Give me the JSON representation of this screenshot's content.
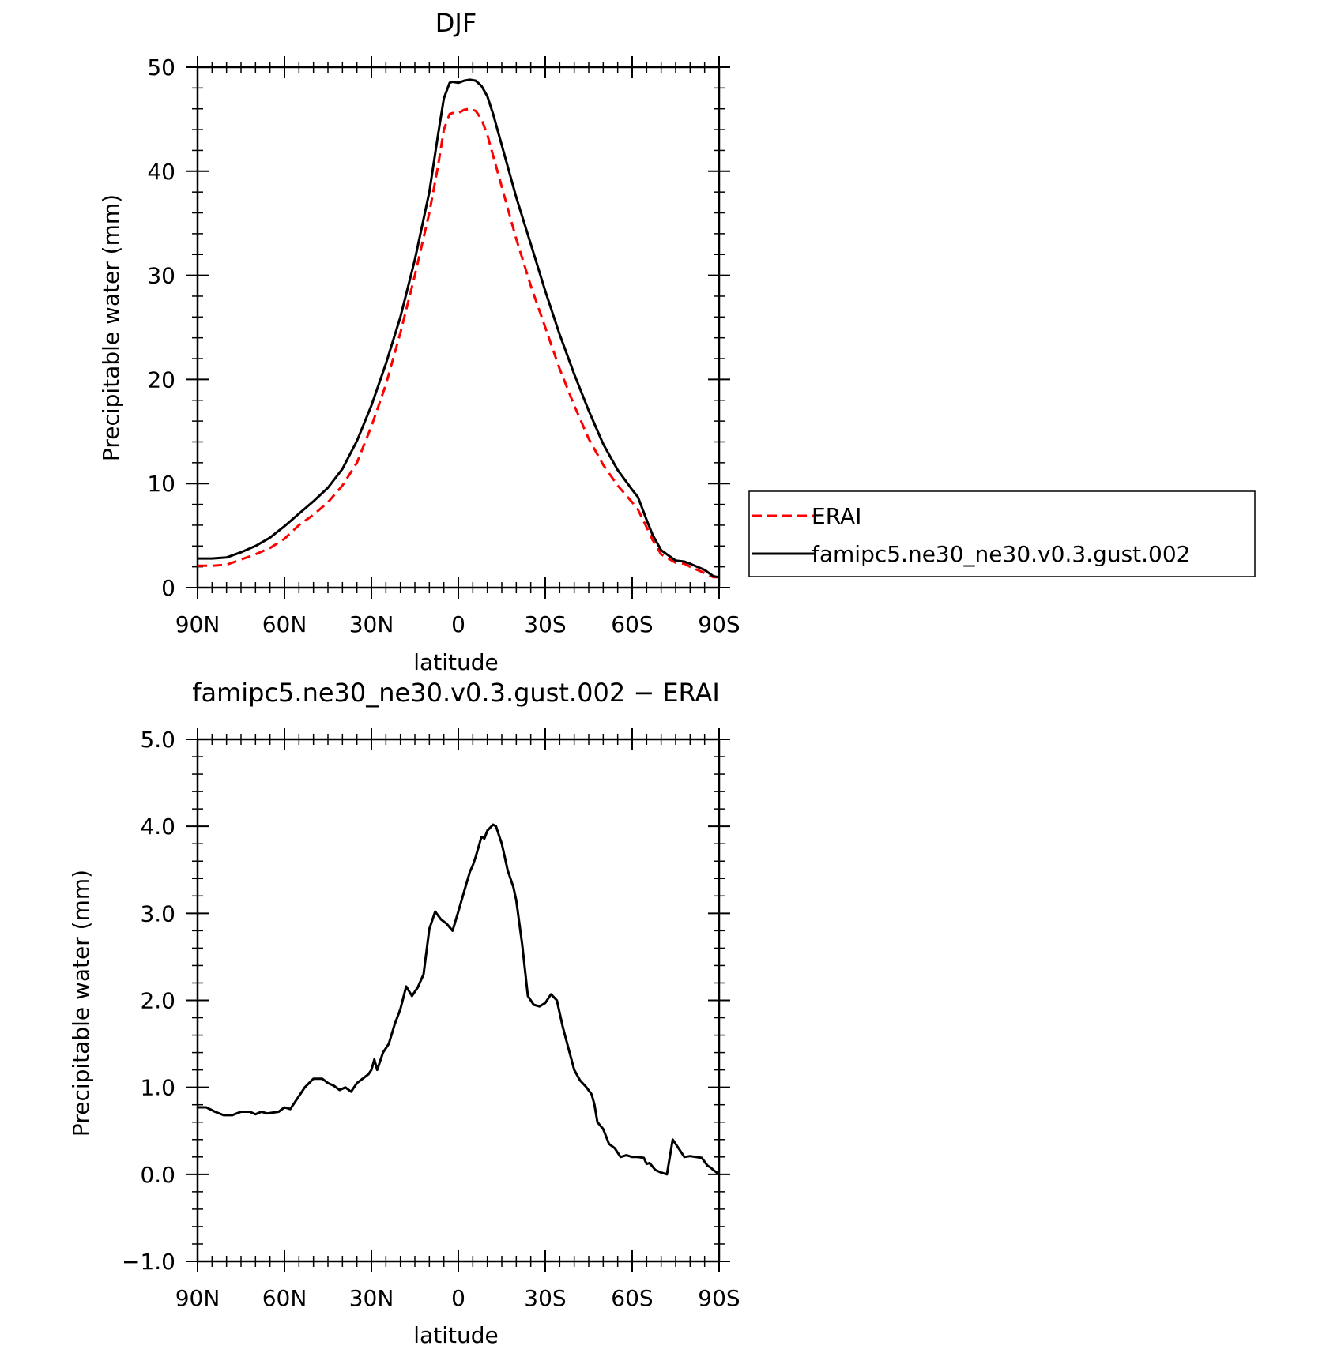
{
  "legend_colors": {
    "erai": "#ff0000",
    "model": "#000000"
  },
  "chart_data": [
    {
      "type": "line",
      "title": "DJF",
      "xlabel": "latitude",
      "ylabel": "Precipitable water (mm)",
      "xlim": [
        90,
        -90
      ],
      "ylim": [
        0,
        50
      ],
      "yticks": [
        "0",
        "10",
        "20",
        "30",
        "40",
        "50"
      ],
      "xticks": [
        "90N",
        "60N",
        "30N",
        "0",
        "30S",
        "60S",
        "90S"
      ],
      "legend_position": "right",
      "series": [
        {
          "name": "ERAI",
          "style": "dashed",
          "color": "#ff0000",
          "x": [
            90,
            85,
            80,
            75,
            70,
            65,
            60,
            55,
            50,
            45,
            40,
            35,
            30,
            25,
            20,
            15,
            10,
            7,
            5,
            3,
            2,
            0,
            -2,
            -4,
            -6,
            -8,
            -10,
            -12,
            -15,
            -20,
            -25,
            -30,
            -35,
            -40,
            -45,
            -50,
            -55,
            -60,
            -62,
            -65,
            -67,
            -70,
            -75,
            -78,
            -80,
            -85,
            -88,
            -90
          ],
          "y": [
            2.1,
            2.1,
            2.2,
            2.7,
            3.2,
            3.8,
            4.7,
            6.0,
            7.0,
            8.2,
            9.8,
            12.0,
            15.5,
            19.5,
            24.5,
            30.0,
            36.0,
            40.5,
            44.0,
            45.5,
            45.6,
            45.6,
            45.9,
            46.0,
            45.8,
            45.0,
            43.5,
            41.5,
            38.5,
            33.5,
            29.0,
            25.0,
            21.0,
            17.5,
            14.3,
            11.8,
            9.8,
            8.2,
            7.5,
            5.8,
            4.6,
            3.2,
            2.4,
            2.3,
            2.0,
            1.4,
            1.0,
            1.0
          ]
        },
        {
          "name": "famipc5.ne30_ne30.v0.3.gust.002",
          "style": "solid",
          "color": "#000000",
          "x": [
            90,
            85,
            80,
            75,
            70,
            65,
            60,
            55,
            50,
            45,
            40,
            35,
            30,
            25,
            20,
            15,
            10,
            7,
            5,
            3,
            2,
            0,
            -2,
            -4,
            -6,
            -8,
            -10,
            -12,
            -15,
            -20,
            -25,
            -30,
            -35,
            -40,
            -45,
            -50,
            -55,
            -60,
            -62,
            -65,
            -67,
            -70,
            -75,
            -78,
            -80,
            -85,
            -88,
            -90
          ],
          "y": [
            2.8,
            2.8,
            2.9,
            3.4,
            4.0,
            4.8,
            5.9,
            7.1,
            8.3,
            9.6,
            11.4,
            14.1,
            17.5,
            21.5,
            26.0,
            31.5,
            38.0,
            43.5,
            47.0,
            48.5,
            48.6,
            48.5,
            48.7,
            48.8,
            48.7,
            48.2,
            47.2,
            45.5,
            42.5,
            37.5,
            33.0,
            28.5,
            24.3,
            20.5,
            17.0,
            13.8,
            11.3,
            9.4,
            8.7,
            6.5,
            5.1,
            3.6,
            2.6,
            2.5,
            2.3,
            1.7,
            1.1,
            1.0
          ]
        }
      ]
    },
    {
      "type": "line",
      "title": "famipc5.ne30_ne30.v0.3.gust.002 − ERAI",
      "xlabel": "latitude",
      "ylabel": "Precipitable water (mm)",
      "xlim": [
        90,
        -90
      ],
      "ylim": [
        -1,
        5
      ],
      "yticks": [
        "−1.0",
        "0.0",
        "1.0",
        "2.0",
        "3.0",
        "4.0",
        "5.0"
      ],
      "xticks": [
        "90N",
        "60N",
        "30N",
        "0",
        "30S",
        "60S",
        "90S"
      ],
      "series": [
        {
          "name": "",
          "style": "solid",
          "color": "#000000",
          "x": [
            90,
            87,
            84,
            81,
            78,
            75,
            72,
            70,
            68,
            66,
            64,
            62,
            60,
            58,
            56,
            53,
            50,
            47,
            45,
            43,
            41,
            39,
            37,
            35,
            33,
            31,
            30,
            29,
            28,
            27,
            26,
            24,
            22,
            20,
            18,
            16,
            14,
            12,
            10,
            8,
            6,
            4,
            2,
            0,
            -2,
            -4,
            -5,
            -6,
            -8,
            -9,
            -10,
            -12,
            -13,
            -14,
            -15,
            -16,
            -17,
            -18,
            -19,
            -20,
            -22,
            -24,
            -26,
            -28,
            -30,
            -32,
            -34,
            -36,
            -38,
            -40,
            -42,
            -44,
            -46,
            -47,
            -48,
            -50,
            -52,
            -54,
            -56,
            -58,
            -60,
            -62,
            -64,
            -65,
            -66,
            -68,
            -70,
            -72,
            -74,
            -76,
            -78,
            -80,
            -82,
            -84,
            -86,
            -87,
            -88,
            -90
          ],
          "y": [
            0.77,
            0.77,
            0.72,
            0.68,
            0.68,
            0.72,
            0.72,
            0.69,
            0.72,
            0.7,
            0.71,
            0.72,
            0.77,
            0.75,
            0.85,
            1.0,
            1.1,
            1.1,
            1.05,
            1.02,
            0.97,
            1.0,
            0.95,
            1.05,
            1.1,
            1.15,
            1.2,
            1.32,
            1.2,
            1.3,
            1.4,
            1.5,
            1.72,
            1.9,
            2.16,
            2.05,
            2.15,
            2.3,
            2.82,
            3.02,
            2.93,
            2.88,
            2.8,
            3.02,
            3.25,
            3.48,
            3.55,
            3.65,
            3.88,
            3.86,
            3.95,
            4.02,
            4.0,
            3.9,
            3.8,
            3.65,
            3.5,
            3.4,
            3.3,
            3.15,
            2.65,
            2.05,
            1.95,
            1.93,
            1.97,
            2.07,
            2.0,
            1.7,
            1.45,
            1.2,
            1.08,
            1.01,
            0.92,
            0.8,
            0.6,
            0.52,
            0.35,
            0.3,
            0.2,
            0.22,
            0.2,
            0.2,
            0.19,
            0.12,
            0.13,
            0.05,
            0.02,
            0.0,
            0.4,
            0.3,
            0.2,
            0.21,
            0.2,
            0.19,
            0.1,
            0.08,
            0.05,
            0.0
          ]
        }
      ]
    }
  ]
}
